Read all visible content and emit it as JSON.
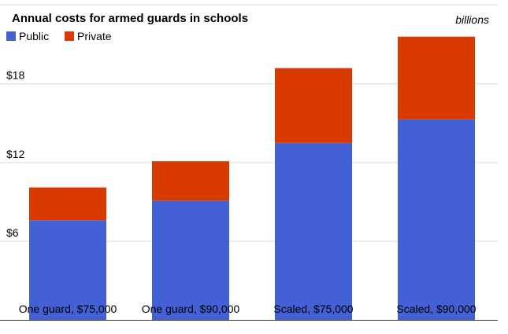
{
  "chart_data": {
    "type": "bar",
    "stacked": true,
    "title": "Annual costs for armed guards in schools",
    "units_label": "billions",
    "categories": [
      "One guard, $75,000",
      "One guard, $90,000",
      "Scaled, $75,000",
      "Scaled, $90,000"
    ],
    "series": [
      {
        "name": "Public",
        "color": "#4360D4",
        "values": [
          7.6,
          9.1,
          13.5,
          15.3
        ]
      },
      {
        "name": "Private",
        "color": "#D93A00",
        "values": [
          2.5,
          3.0,
          5.7,
          6.3
        ]
      }
    ],
    "ylim": [
      0,
      22
    ],
    "yticks": [
      6,
      12,
      18
    ],
    "ytick_labels": [
      "$6",
      "$12",
      "$18"
    ],
    "xlabel": "",
    "ylabel": "",
    "grid": true,
    "legend": "top-left"
  }
}
